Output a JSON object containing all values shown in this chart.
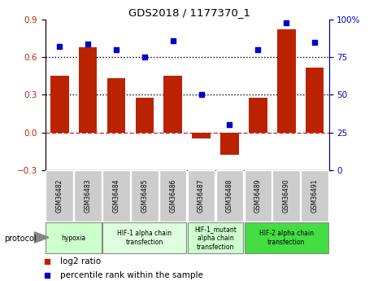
{
  "title": "GDS2018 / 1177370_1",
  "samples": [
    "GSM36482",
    "GSM36483",
    "GSM36484",
    "GSM36485",
    "GSM36486",
    "GSM36487",
    "GSM36488",
    "GSM36489",
    "GSM36490",
    "GSM36491"
  ],
  "log2_ratio": [
    0.45,
    0.68,
    0.43,
    0.28,
    0.45,
    -0.05,
    -0.18,
    0.28,
    0.82,
    0.52
  ],
  "percentile_rank": [
    82,
    84,
    80,
    75,
    86,
    50,
    30,
    80,
    98,
    85
  ],
  "bar_color": "#bb2200",
  "dot_color": "#0000cc",
  "ylim_left": [
    -0.3,
    0.9
  ],
  "ylim_right": [
    0,
    100
  ],
  "yticks_left": [
    -0.3,
    0.0,
    0.3,
    0.6,
    0.9
  ],
  "yticks_right": [
    0,
    25,
    50,
    75,
    100
  ],
  "hlines": [
    0.3,
    0.6
  ],
  "zero_line_color": "#cc3333",
  "hline_color": "#000000",
  "protocol_groups": [
    {
      "label": "hypoxia",
      "start": 0,
      "end": 2,
      "color": "#ccffcc"
    },
    {
      "label": "HIF-1 alpha chain\ntransfection",
      "start": 2,
      "end": 5,
      "color": "#ddffdd"
    },
    {
      "label": "HIF-1_mutant\nalpha chain\ntransfection",
      "start": 5,
      "end": 7,
      "color": "#ccffcc"
    },
    {
      "label": "HIF-2 alpha chain\ntransfection",
      "start": 7,
      "end": 10,
      "color": "#44dd44"
    }
  ],
  "legend_items": [
    {
      "label": "log2 ratio",
      "color": "#bb2200"
    },
    {
      "label": "percentile rank within the sample",
      "color": "#0000cc"
    }
  ],
  "bg_color": "#ffffff",
  "tick_bg_color": "#cccccc",
  "border_color": "#888888"
}
